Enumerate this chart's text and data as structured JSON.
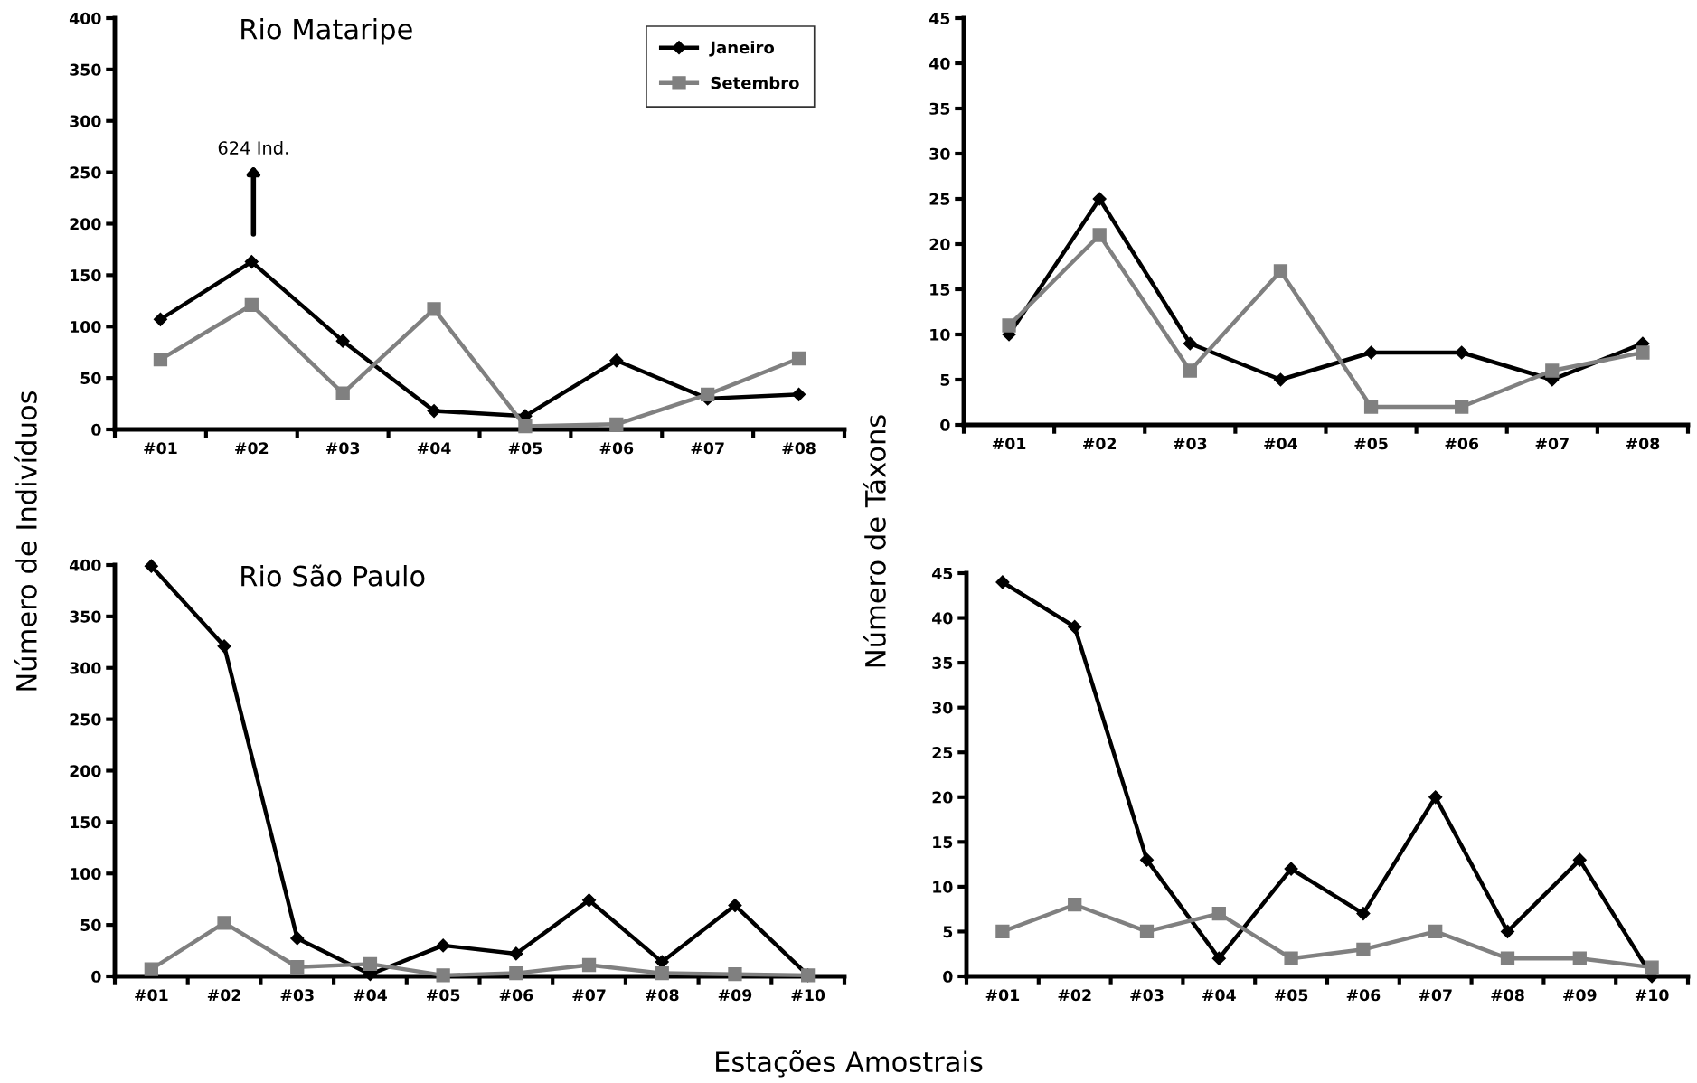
{
  "chart_data": [
    {
      "type": "line",
      "title": "Rio Mataripe",
      "ylabel": "Número de Indivíduos",
      "categories": [
        "#01",
        "#02",
        "#03",
        "#04",
        "#05",
        "#06",
        "#07",
        "#08"
      ],
      "ylim": [
        0,
        400
      ],
      "yticks": [
        0,
        50,
        100,
        150,
        200,
        250,
        300,
        350,
        400
      ],
      "legend": "top right",
      "grid": false,
      "annotations": [
        "624 Ind."
      ],
      "series": [
        {
          "name": "Janeiro",
          "color": "#000000",
          "marker": "diamond",
          "values": [
            107,
            163,
            86,
            18,
            13,
            67,
            30,
            34
          ]
        },
        {
          "name": "Setembro",
          "color": "#808080",
          "marker": "square",
          "values": [
            68,
            121,
            35,
            117,
            3,
            5,
            34,
            69
          ]
        }
      ]
    },
    {
      "type": "line",
      "ylabel": "Número de Táxons",
      "categories": [
        "#01",
        "#02",
        "#03",
        "#04",
        "#05",
        "#06",
        "#07",
        "#08"
      ],
      "ylim": [
        0,
        45
      ],
      "yticks": [
        0,
        5,
        10,
        15,
        20,
        25,
        30,
        35,
        40,
        45
      ],
      "grid": false,
      "series": [
        {
          "color": "#000000",
          "marker": "diamond",
          "values": [
            10,
            25,
            9,
            5,
            8,
            8,
            5,
            9
          ]
        },
        {
          "color": "#808080",
          "marker": "square",
          "values": [
            11,
            21,
            6,
            17,
            2,
            2,
            6,
            8
          ]
        }
      ]
    },
    {
      "type": "line",
      "title": "Rio São Paulo",
      "xlabel": "Estações Amostrais",
      "categories": [
        "#01",
        "#02",
        "#03",
        "#04",
        "#05",
        "#06",
        "#07",
        "#08",
        "#09",
        "#10"
      ],
      "ylim": [
        0,
        400
      ],
      "yticks": [
        0,
        50,
        100,
        150,
        200,
        250,
        300,
        350,
        400
      ],
      "grid": false,
      "series": [
        {
          "color": "#000000",
          "marker": "diamond",
          "values": [
            399,
            321,
            37,
            2,
            30,
            22,
            74,
            14,
            69,
            1
          ]
        },
        {
          "color": "#808080",
          "marker": "square",
          "values": [
            7,
            52,
            9,
            12,
            1,
            3,
            11,
            3,
            2,
            1
          ]
        }
      ]
    },
    {
      "type": "line",
      "categories": [
        "#01",
        "#02",
        "#03",
        "#04",
        "#05",
        "#06",
        "#07",
        "#08",
        "#09",
        "#10"
      ],
      "ylim": [
        0,
        45
      ],
      "yticks": [
        0,
        5,
        10,
        15,
        20,
        25,
        30,
        35,
        40,
        45
      ],
      "grid": false,
      "series": [
        {
          "color": "#000000",
          "marker": "diamond",
          "values": [
            44,
            39,
            13,
            2,
            12,
            7,
            20,
            5,
            13,
            0
          ]
        },
        {
          "color": "#808080",
          "marker": "square",
          "values": [
            5,
            8,
            5,
            7,
            2,
            3,
            5,
            2,
            2,
            1
          ]
        }
      ]
    }
  ]
}
